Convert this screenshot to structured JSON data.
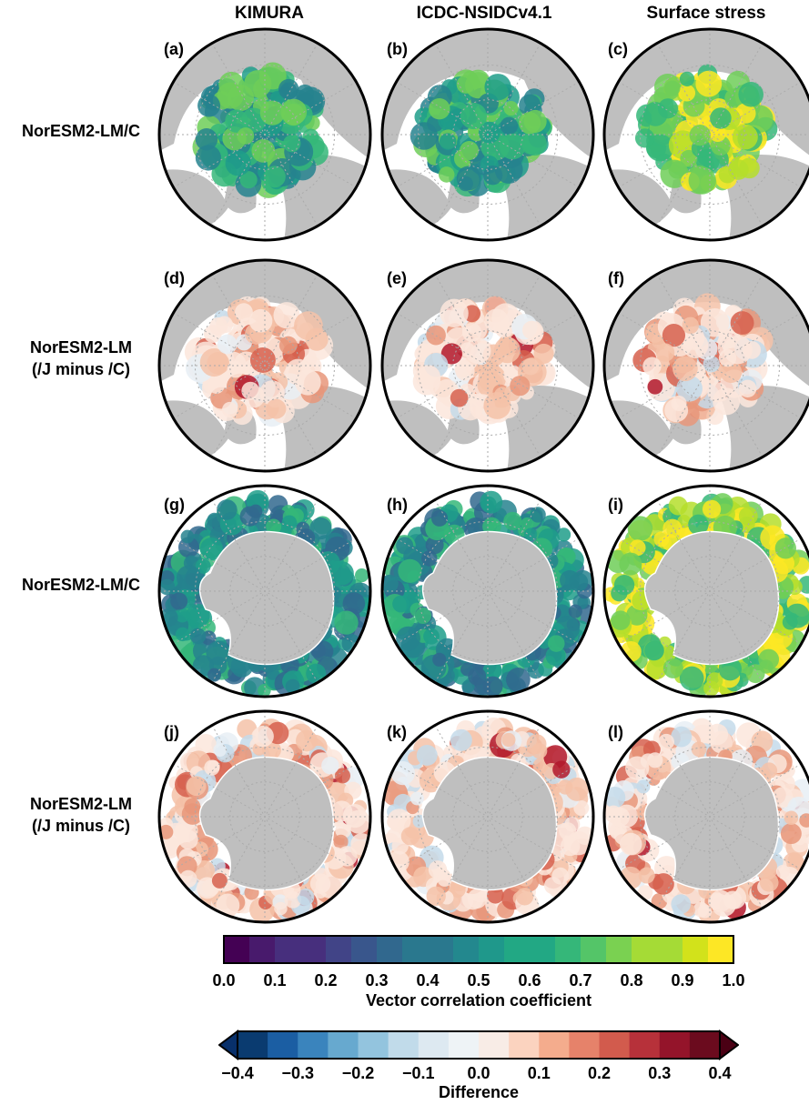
{
  "columns": [
    "KIMURA",
    "ICDC-NSIDCv4.1",
    "Surface stress"
  ],
  "rows": [
    {
      "label_line1": "NorESM2-LM/C",
      "label_line2": "",
      "hemisphere": "arctic",
      "kind": "correlation"
    },
    {
      "label_line1": "NorESM2-LM",
      "label_line2": "(/J minus /C)",
      "hemisphere": "arctic",
      "kind": "difference"
    },
    {
      "label_line1": "NorESM2-LM/C",
      "label_line2": "",
      "hemisphere": "antarctic",
      "kind": "correlation"
    },
    {
      "label_line1": "NorESM2-LM",
      "label_line2": "(/J minus /C)",
      "hemisphere": "antarctic",
      "kind": "difference"
    }
  ],
  "panels": [
    "(a)",
    "(b)",
    "(c)",
    "(d)",
    "(e)",
    "(f)",
    "(g)",
    "(h)",
    "(i)",
    "(j)",
    "(k)",
    "(l)"
  ],
  "colorbar_correlation": {
    "label": "Vector correlation coefficient",
    "ticks": [
      "0.0",
      "0.1",
      "0.2",
      "0.3",
      "0.4",
      "0.5",
      "0.6",
      "0.7",
      "0.8",
      "0.9",
      "1.0"
    ],
    "range": [
      0.0,
      1.0
    ],
    "colormap": "viridis",
    "n_bins": 20
  },
  "colorbar_difference": {
    "label": "Difference",
    "ticks": [
      "−0.4",
      "−0.3",
      "−0.2",
      "−0.1",
      "0.0",
      "0.1",
      "0.2",
      "0.3",
      "0.4"
    ],
    "range": [
      -0.4,
      0.4
    ],
    "colormap": "RdBu_r",
    "n_bins": 16,
    "extend": "both"
  },
  "colors": {
    "land": "#bfbfbf",
    "ocean": "#ffffff",
    "gridline": "#aaaaaa"
  }
}
